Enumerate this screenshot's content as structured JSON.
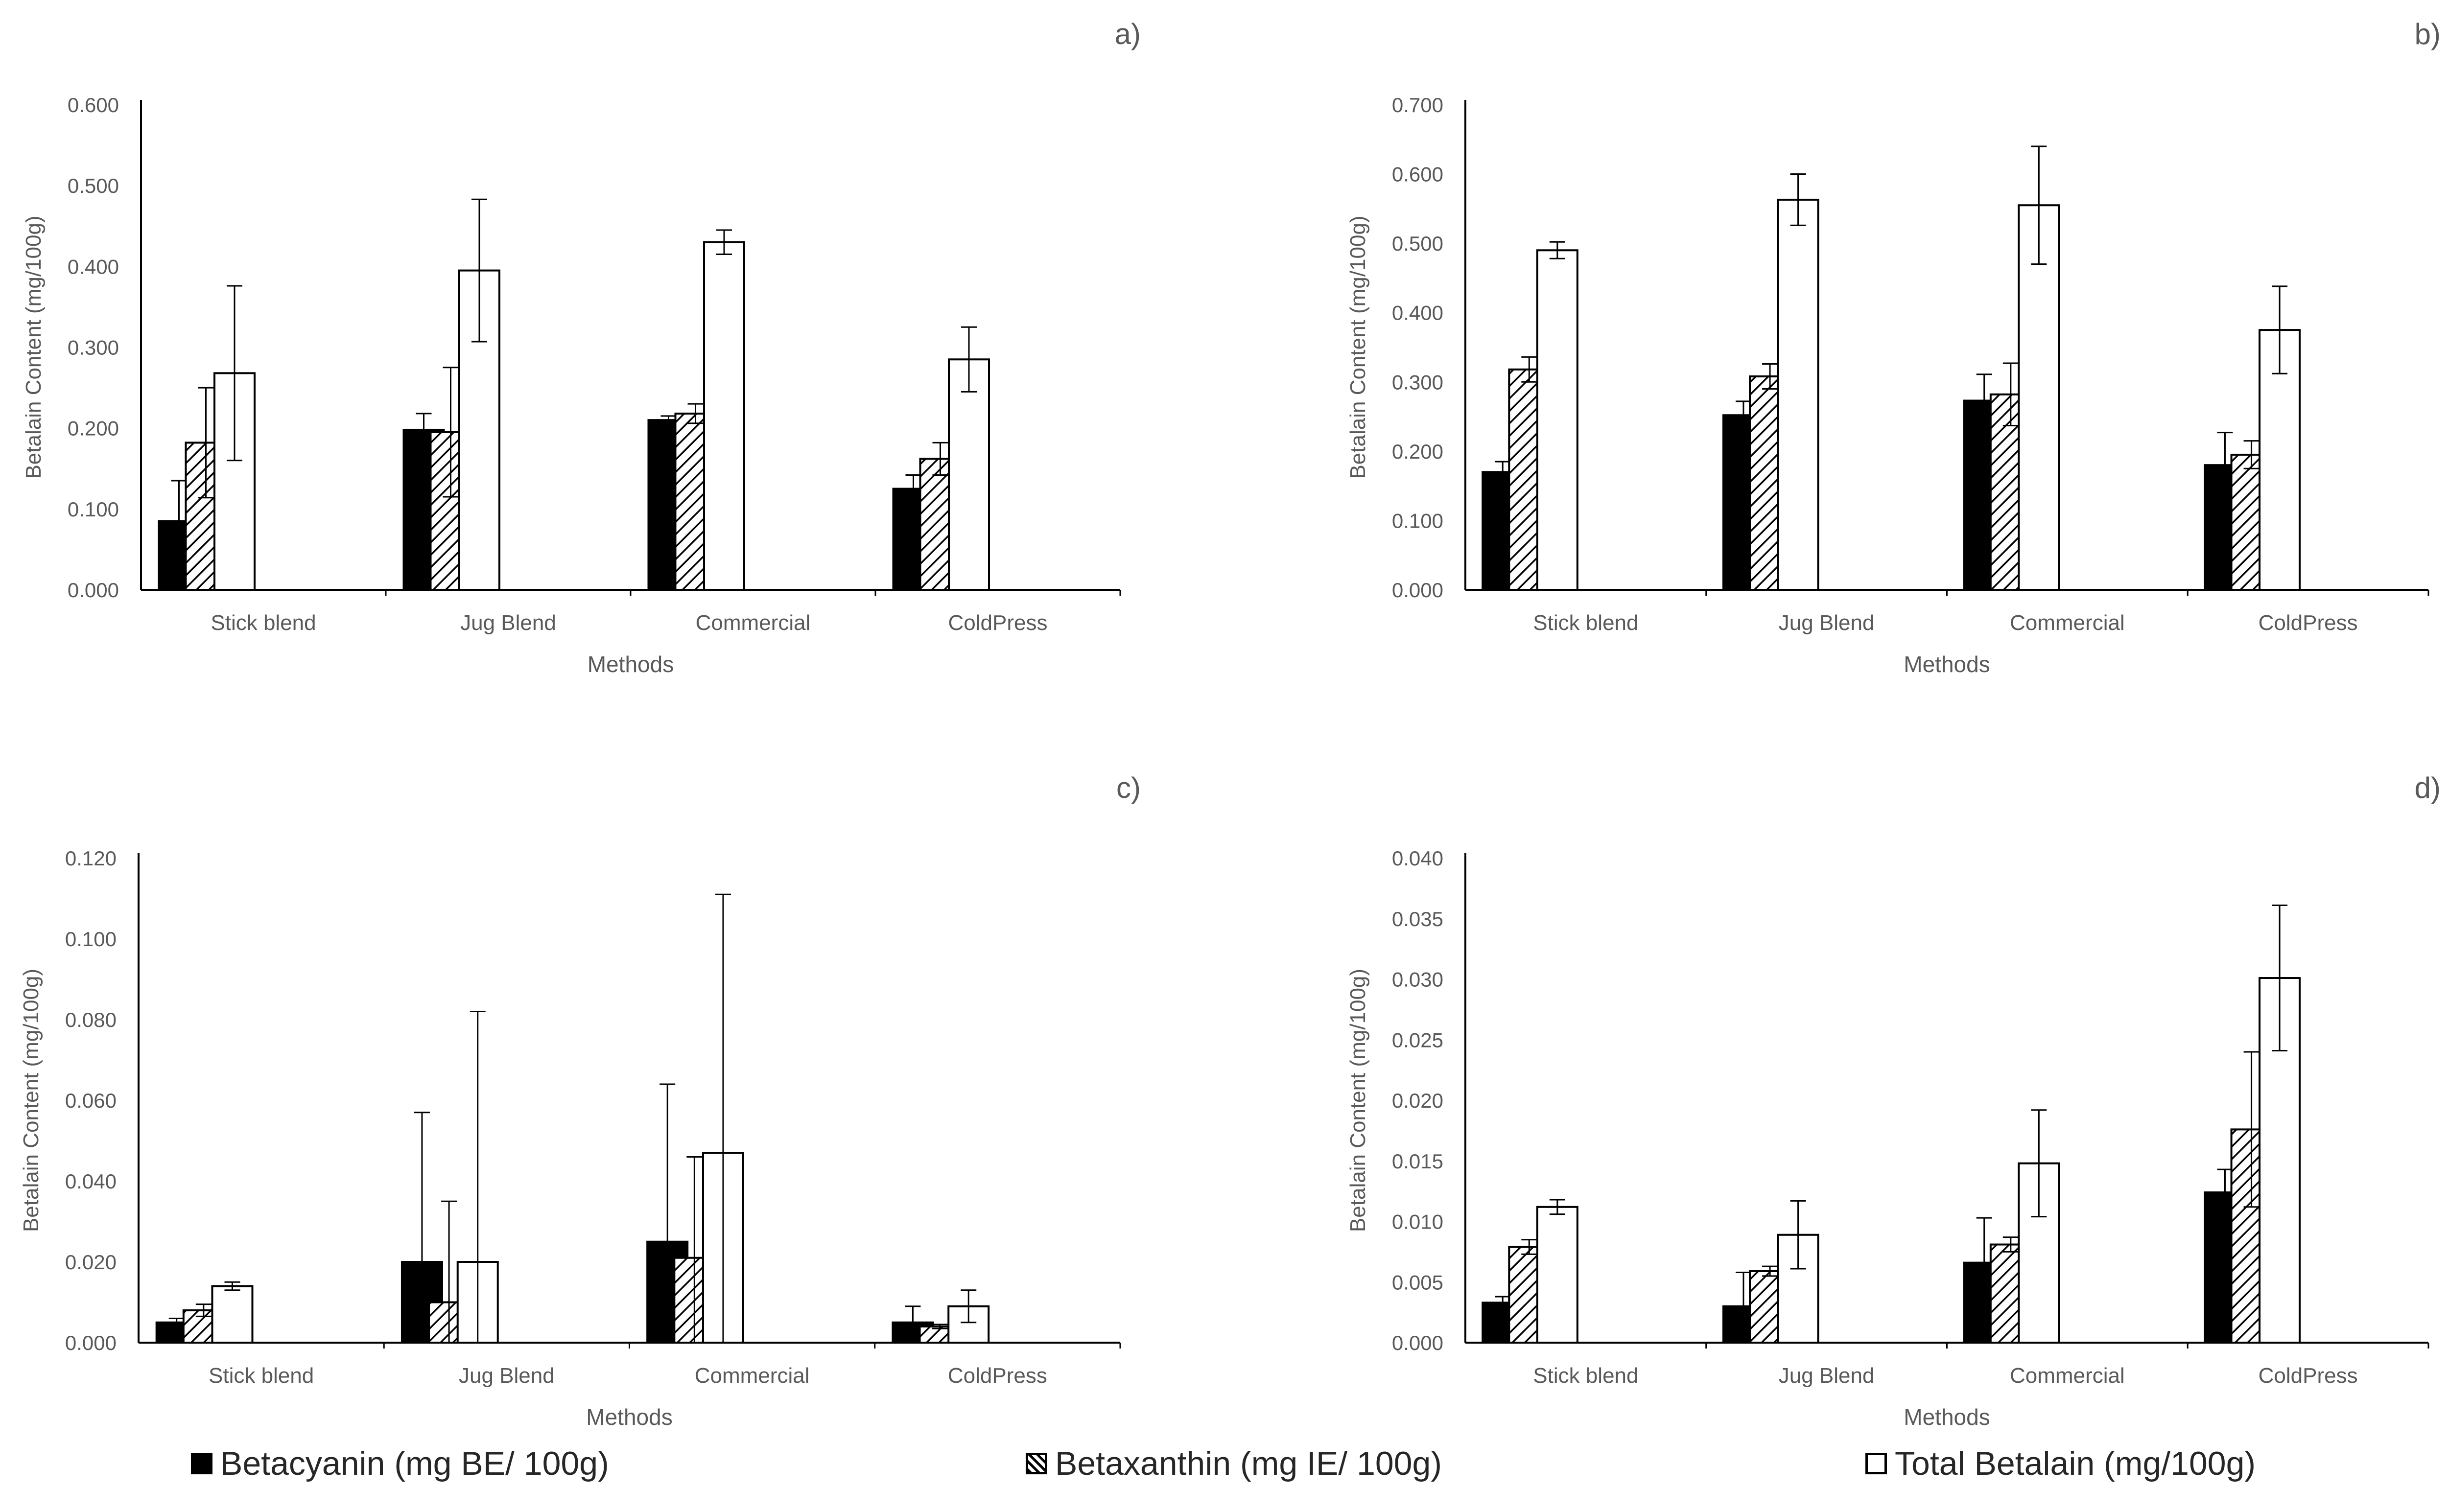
{
  "colors": {
    "betacyanin": "#000000",
    "betaxanthin": "hatched",
    "total": "#ffffff",
    "axis": "#000000",
    "text": "#595959"
  },
  "legend": [
    {
      "key": "betacyanin",
      "label": "Betacyanin (mg BE/ 100g)"
    },
    {
      "key": "betaxanthin",
      "label": "Betaxanthin (mg IE/ 100g)"
    },
    {
      "key": "total",
      "label": "Total Betalain (mg/100g)"
    }
  ],
  "chart_data": [
    {
      "type": "bar",
      "panel_label": "a)",
      "categories": [
        "Stick blend",
        "Jug Blend",
        "Commercial",
        "ColdPress"
      ],
      "xlabel": "Methods",
      "ylabel": "Betalain Content (mg/100g)",
      "ylim": [
        0,
        0.6
      ],
      "yticks": [
        "0.000",
        "0.100",
        "0.200",
        "0.300",
        "0.400",
        "0.500",
        "0.600"
      ],
      "series": [
        {
          "key": "betacyanin",
          "values": [
            0.085,
            0.198,
            0.21,
            0.125
          ],
          "errors": [
            0.05,
            0.02,
            0.005,
            0.017
          ]
        },
        {
          "key": "betaxanthin",
          "values": [
            0.182,
            0.195,
            0.218,
            0.162
          ],
          "errors": [
            0.068,
            0.08,
            0.012,
            0.02
          ]
        },
        {
          "key": "total",
          "values": [
            0.268,
            0.395,
            0.43,
            0.285
          ],
          "errors": [
            0.108,
            0.088,
            0.015,
            0.04
          ]
        }
      ]
    },
    {
      "type": "bar",
      "panel_label": "b)",
      "categories": [
        "Stick blend",
        "Jug Blend",
        "Commercial",
        "ColdPress"
      ],
      "xlabel": "Methods",
      "ylabel": "Betalain Content (mg/100g)",
      "ylim": [
        0,
        0.7
      ],
      "yticks": [
        "0.000",
        "0.100",
        "0.200",
        "0.300",
        "0.400",
        "0.500",
        "0.600",
        "0.700"
      ],
      "series": [
        {
          "key": "betacyanin",
          "values": [
            0.17,
            0.252,
            0.273,
            0.18
          ],
          "errors": [
            0.015,
            0.02,
            0.038,
            0.047
          ]
        },
        {
          "key": "betaxanthin",
          "values": [
            0.318,
            0.308,
            0.282,
            0.195
          ],
          "errors": [
            0.018,
            0.018,
            0.045,
            0.02
          ]
        },
        {
          "key": "total",
          "values": [
            0.49,
            0.563,
            0.555,
            0.375
          ],
          "errors": [
            0.012,
            0.037,
            0.085,
            0.063
          ]
        }
      ]
    },
    {
      "type": "bar",
      "panel_label": "c)",
      "categories": [
        "Stick blend",
        "Jug Blend",
        "Commercial",
        "ColdPress"
      ],
      "xlabel": "Methods",
      "ylabel": "Betalain Content (mg/100g)",
      "ylim": [
        0,
        0.12
      ],
      "yticks": [
        "0.000",
        "0.020",
        "0.040",
        "0.060",
        "0.080",
        "0.100",
        "0.120"
      ],
      "series": [
        {
          "key": "betacyanin",
          "values": [
            0.005,
            0.02,
            0.025,
            0.005
          ],
          "errors": [
            0.001,
            0.037,
            0.039,
            0.004
          ]
        },
        {
          "key": "betaxanthin",
          "values": [
            0.008,
            0.01,
            0.021,
            0.004
          ],
          "errors": [
            0.0015,
            0.025,
            0.025,
            0.0005
          ]
        },
        {
          "key": "total",
          "values": [
            0.014,
            0.02,
            0.047,
            0.009
          ],
          "errors": [
            0.001,
            0.062,
            0.064,
            0.004
          ]
        }
      ]
    },
    {
      "type": "bar",
      "panel_label": "d)",
      "categories": [
        "Stick blend",
        "Jug Blend",
        "Commercial",
        "ColdPress"
      ],
      "xlabel": "Methods",
      "ylabel": "Betalain Content (mg/100g)",
      "ylim": [
        0,
        0.04
      ],
      "yticks": [
        "0.000",
        "0.005",
        "0.010",
        "0.015",
        "0.020",
        "0.025",
        "0.030",
        "0.035",
        "0.040"
      ],
      "series": [
        {
          "key": "betacyanin",
          "values": [
            0.0033,
            0.003,
            0.0066,
            0.0124
          ],
          "errors": [
            0.0005,
            0.0028,
            0.0037,
            0.0019
          ]
        },
        {
          "key": "betaxanthin",
          "values": [
            0.0079,
            0.0059,
            0.0081,
            0.0176
          ],
          "errors": [
            0.0006,
            0.0004,
            0.0006,
            0.0064
          ]
        },
        {
          "key": "total",
          "values": [
            0.0112,
            0.0089,
            0.0148,
            0.0301
          ],
          "errors": [
            0.0006,
            0.0028,
            0.0044,
            0.006
          ]
        }
      ]
    }
  ]
}
